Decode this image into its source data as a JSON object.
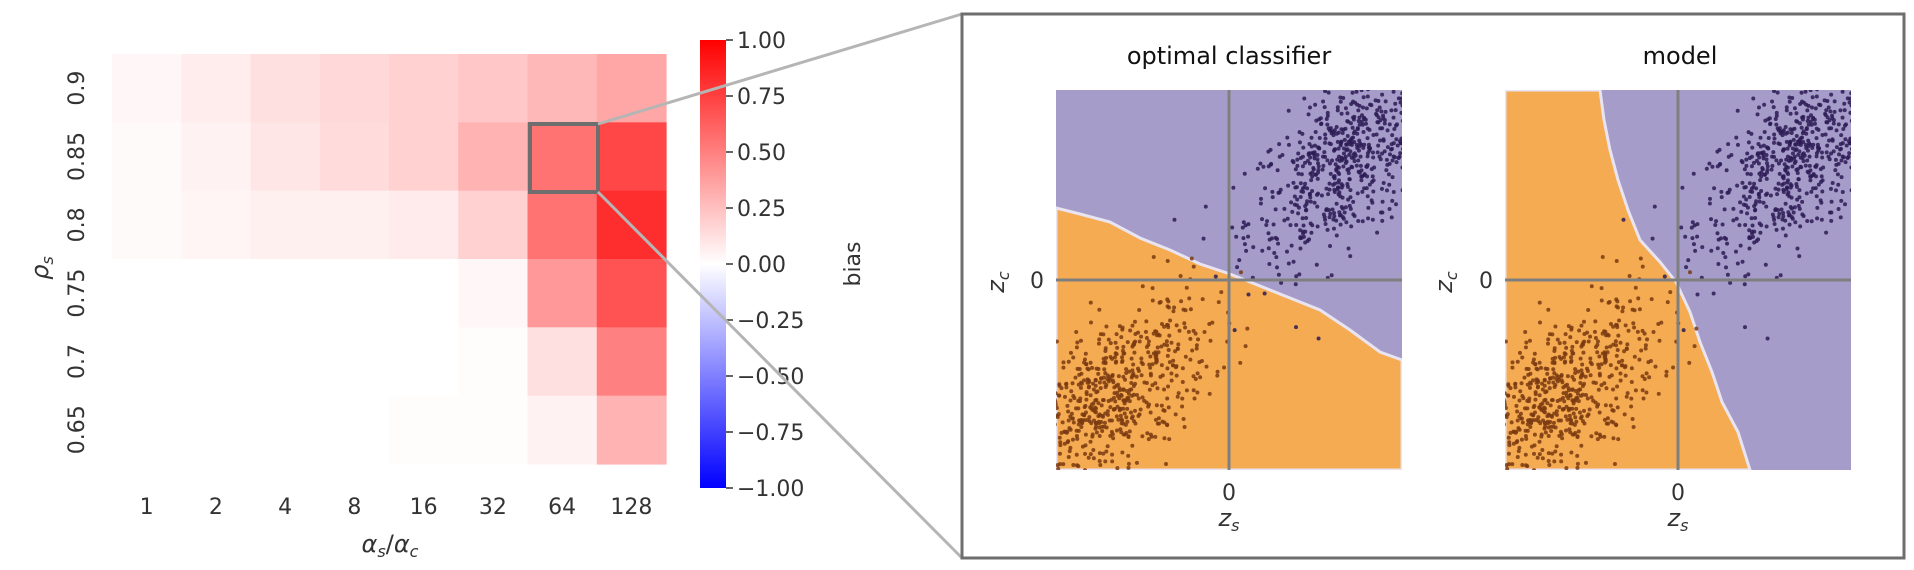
{
  "chart_data": [
    {
      "type": "heatmap",
      "title": "",
      "xlabel": "αs/αc",
      "ylabel": "ρs",
      "x_categories": [
        "1",
        "2",
        "4",
        "8",
        "16",
        "32",
        "64",
        "128"
      ],
      "y_categories": [
        "0.9",
        "0.85",
        "0.8",
        "0.75",
        "0.7",
        "0.65"
      ],
      "values": [
        [
          0.03,
          0.07,
          0.12,
          0.15,
          0.18,
          0.22,
          0.28,
          0.35
        ],
        [
          0.02,
          0.05,
          0.1,
          0.14,
          0.18,
          0.3,
          0.55,
          0.72
        ],
        [
          0.02,
          0.04,
          0.06,
          0.06,
          0.08,
          0.18,
          0.55,
          0.82
        ],
        [
          0.0,
          0.0,
          0.0,
          0.0,
          0.0,
          0.03,
          0.4,
          0.68
        ],
        [
          0.0,
          0.0,
          0.0,
          0.0,
          0.0,
          0.01,
          0.12,
          0.5
        ],
        [
          0.0,
          0.0,
          0.0,
          0.0,
          0.01,
          0.01,
          0.05,
          0.3
        ]
      ],
      "highlight_cell": {
        "x": "64",
        "y": "0.85"
      },
      "colorbar": {
        "label": "bias",
        "vmin": -1.0,
        "vmax": 1.0,
        "ticks": [
          "1.00",
          "0.75",
          "0.50",
          "0.25",
          "0.00",
          "−0.25",
          "−0.50",
          "−0.75",
          "−1.00"
        ],
        "colors": {
          "low": "#0000ff",
          "mid": "#ffffff",
          "high": "#ff0000"
        }
      }
    },
    {
      "type": "scatter",
      "title": "optimal classifier",
      "xlabel": "zs",
      "ylabel": "zc",
      "xticks": [
        "0"
      ],
      "yticks": [
        "0"
      ],
      "regions": {
        "class_0": "#f5ab52",
        "class_1": "#a59cc9"
      },
      "boundary": "linear, slope about −0.6 through the origin",
      "clusters": [
        {
          "name": "",
          "color": "#2d1b55",
          "center": [
            1.0,
            1.0
          ]
        },
        {
          "name": "",
          "color": "#7a3a10",
          "center": [
            -1.0,
            -1.0
          ]
        }
      ]
    },
    {
      "type": "scatter",
      "title": "model",
      "xlabel": "zs",
      "ylabel": "zc",
      "xticks": [
        "0"
      ],
      "yticks": [
        "0"
      ],
      "regions": {
        "class_0": "#f5ab52",
        "class_1": "#a59cc9"
      },
      "boundary": "steep, slope about −2.5 through the origin",
      "clusters": [
        {
          "name": "",
          "color": "#2d1b55",
          "center": [
            1.0,
            1.0
          ]
        },
        {
          "name": "",
          "color": "#7a3a10",
          "center": [
            -1.0,
            -1.0
          ]
        }
      ]
    }
  ],
  "heatmap": {
    "ylabel_sym": "ρ",
    "ylabel_sub": "s",
    "xlabel_a": "α",
    "xlabel_a_sub": "s",
    "xlabel_slash": "/",
    "xlabel_b": "α",
    "xlabel_b_sub": "c"
  },
  "zoom_panels": {
    "left": {
      "title": "optimal classifier",
      "ylabel_sym": "z",
      "ylabel_sub": "c",
      "xlabel_sym": "z",
      "xlabel_sub": "s",
      "xtick": "0",
      "ytick": "0"
    },
    "right": {
      "title": "model",
      "ylabel_sym": "z",
      "ylabel_sub": "c",
      "xlabel_sym": "z",
      "xlabel_sub": "s",
      "xtick": "0",
      "ytick": "0"
    }
  }
}
